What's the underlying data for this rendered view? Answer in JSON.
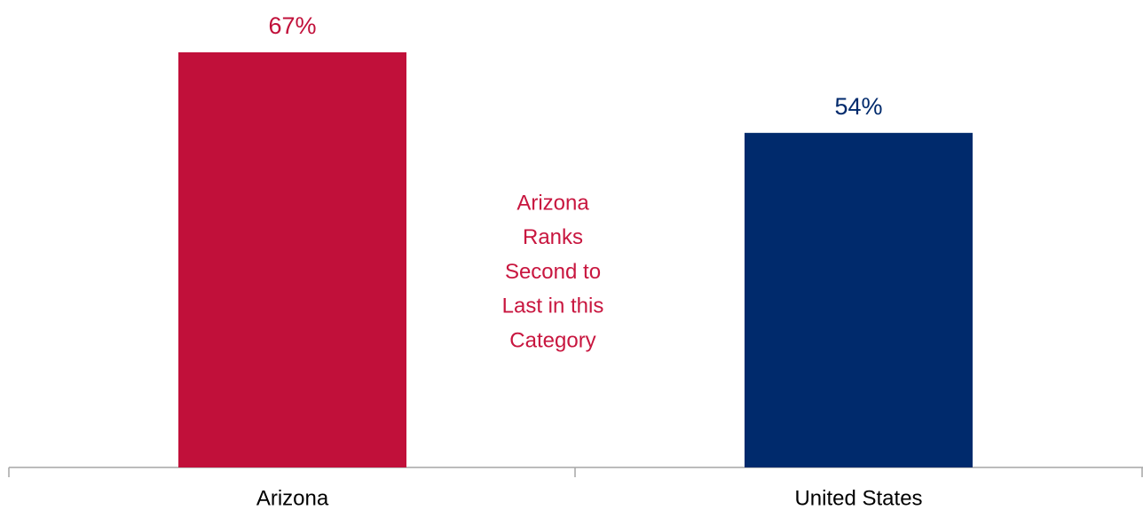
{
  "chart_data": {
    "type": "bar",
    "categories": [
      "Arizona",
      "United States"
    ],
    "values": [
      67,
      54
    ],
    "value_labels": [
      "67%",
      "54%"
    ],
    "colors": [
      "#c1103a",
      "#002a6c"
    ],
    "annotation": [
      "Arizona",
      "Ranks",
      "Second to",
      "Last in this",
      "Category"
    ],
    "annotation_color": "#c8163f"
  }
}
